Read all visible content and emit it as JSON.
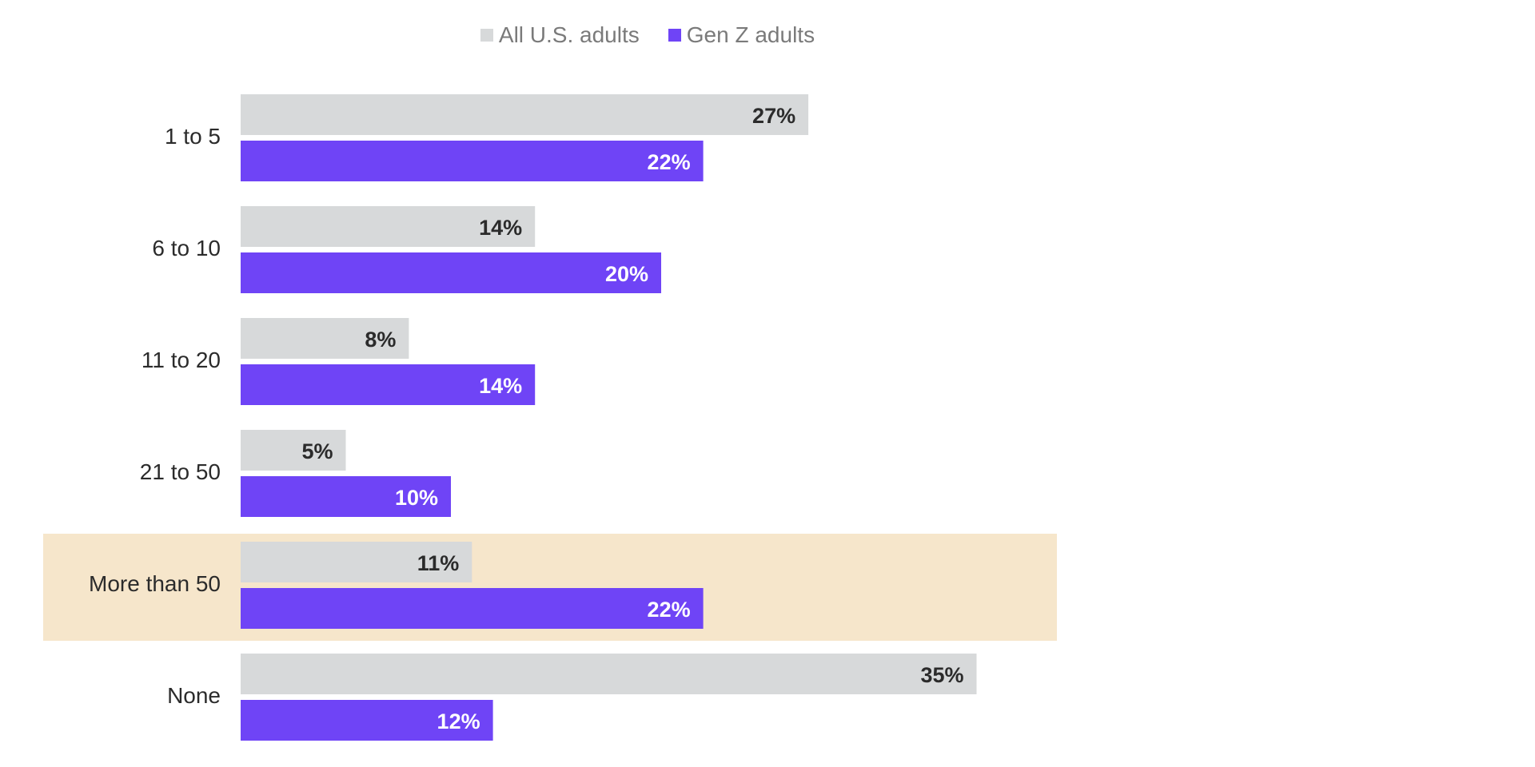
{
  "colors": {
    "all_adults": "#d7d9da",
    "gen_z": "#6f44f6",
    "highlight_band": "#f6e6cb",
    "label_dark": "#2b2b2b",
    "label_light": "#ffffff"
  },
  "legend": [
    {
      "label": "All U.S. adults",
      "color": "#d7d9da"
    },
    {
      "label": "Gen Z adults",
      "color": "#6f44f6"
    }
  ],
  "chart_data": {
    "type": "bar",
    "orientation": "horizontal",
    "categories": [
      "1 to 5",
      "6 to 10",
      "11 to 20",
      "21 to 50",
      "More than 50",
      "None"
    ],
    "series": [
      {
        "name": "All U.S. adults",
        "values": [
          27,
          14,
          8,
          5,
          11,
          35
        ],
        "labels": [
          "27%",
          "14%",
          "8%",
          "5%",
          "11%",
          "35%"
        ]
      },
      {
        "name": "Gen Z adults",
        "values": [
          22,
          20,
          14,
          10,
          22,
          12
        ],
        "labels": [
          "22%",
          "20%",
          "14%",
          "10%",
          "22%",
          "12%"
        ]
      }
    ],
    "highlighted_category": "More than 50",
    "xlim": [
      0,
      35
    ],
    "grid": false,
    "legend_position": "top-center"
  }
}
